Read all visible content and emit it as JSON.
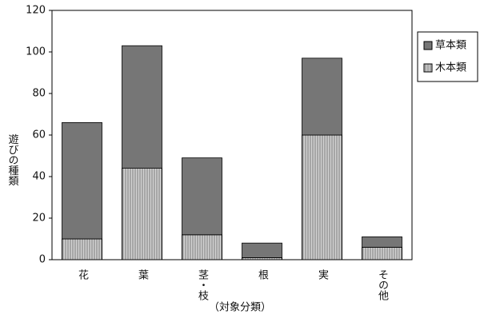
{
  "chart_data": {
    "type": "stacked-bar",
    "x_label": "（対象分類）",
    "y_label": "遊びの種類",
    "categories": [
      "花",
      "葉",
      "茎・枝",
      "根",
      "実",
      "その他"
    ],
    "series": [
      {
        "name": "木本類",
        "color": "#d2d2d2",
        "values": [
          10,
          44,
          12,
          1,
          60,
          6
        ]
      },
      {
        "name": "草本類",
        "color": "#767676",
        "values": [
          56,
          59,
          37,
          7,
          37,
          5
        ]
      }
    ],
    "ylim": [
      0,
      120
    ],
    "yticks": [
      0,
      20,
      40,
      60,
      80,
      100,
      120
    ],
    "legend": "right"
  }
}
